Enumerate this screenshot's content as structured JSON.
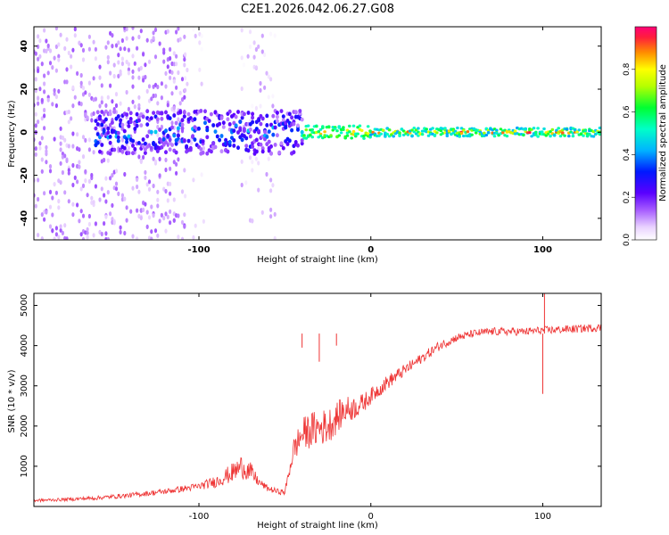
{
  "figure": {
    "title": "C2E1.2026.042.06.27.G08"
  },
  "chart_data": [
    {
      "type": "heatmap",
      "name": "spectrogram",
      "xlabel": "Height of straight line (km)",
      "ylabel": "Frequency (Hz)",
      "xlim": [
        -196,
        134
      ],
      "ylim": [
        -50,
        49
      ],
      "xticks": [
        -100,
        0,
        100
      ],
      "yticks": [
        -40,
        -20,
        0,
        20,
        40
      ],
      "colorbar": {
        "label": "Normalized spectral amplitude",
        "range": [
          0,
          1
        ],
        "ticks": [
          "0.0",
          "0.2",
          "0.4",
          "0.6",
          "0.8"
        ],
        "tick_values": [
          0.0,
          0.2,
          0.4,
          0.6,
          0.8
        ]
      },
      "regions": [
        {
          "x_range": [
            -196,
            -108
          ],
          "freq_spread": 50,
          "amplitude": [
            0.05,
            0.15
          ],
          "density": "high"
        },
        {
          "x_range": [
            -108,
            -95
          ],
          "freq_spread": 50,
          "amplitude": [
            0.0,
            0.08
          ],
          "density": "low"
        },
        {
          "x_range": [
            -95,
            -75
          ],
          "freq_spread": 0,
          "amplitude": [
            0,
            0
          ],
          "density": "none"
        },
        {
          "x_range": [
            -75,
            -55
          ],
          "freq_spread": 50,
          "amplitude": [
            0.0,
            0.1
          ],
          "density": "medium"
        },
        {
          "x_range": [
            -160,
            -40
          ],
          "freq_spread": 10,
          "amplitude": [
            0.1,
            0.5
          ],
          "density": "band"
        },
        {
          "x_range": [
            -40,
            0
          ],
          "freq_spread": 3,
          "amplitude": [
            0.5,
            1.0
          ],
          "density": "line"
        },
        {
          "x_range": [
            0,
            134
          ],
          "freq_spread": 2,
          "amplitude": [
            0.4,
            1.0
          ],
          "density": "line"
        }
      ]
    },
    {
      "type": "line",
      "name": "snr",
      "xlabel": "Height of straight line (km)",
      "ylabel": "SNR (10 * v/v)",
      "xlim": [
        -196,
        134
      ],
      "ylim": [
        0,
        5300
      ],
      "xticks": [
        -100,
        0,
        100
      ],
      "yticks": [
        1000,
        2000,
        3000,
        4000,
        5000
      ],
      "color": "#ee3333",
      "series": [
        {
          "name": "SNR",
          "x": [
            -196,
            -180,
            -160,
            -140,
            -120,
            -100,
            -90,
            -80,
            -75,
            -70,
            -65,
            -60,
            -55,
            -50,
            -45,
            -40,
            -35,
            -30,
            -25,
            -20,
            -15,
            -10,
            -5,
            0,
            10,
            20,
            30,
            40,
            50,
            60,
            70,
            80,
            90,
            100,
            110,
            120,
            134
          ],
          "y": [
            150,
            170,
            210,
            280,
            370,
            500,
            620,
            850,
            1000,
            850,
            600,
            450,
            380,
            350,
            1400,
            1800,
            1900,
            1950,
            2000,
            2200,
            2400,
            2450,
            2550,
            2750,
            3100,
            3400,
            3700,
            4000,
            4200,
            4300,
            4350,
            4350,
            4350,
            4380,
            4400,
            4420,
            4450
          ],
          "noise": [
            40,
            40,
            50,
            60,
            70,
            90,
            150,
            250,
            300,
            250,
            100,
            80,
            70,
            70,
            300,
            400,
            450,
            450,
            450,
            400,
            350,
            300,
            250,
            200,
            180,
            150,
            130,
            120,
            100,
            100,
            100,
            100,
            100,
            100,
            100,
            100,
            100
          ]
        }
      ],
      "spikes": [
        {
          "x": -40,
          "y": 3950
        },
        {
          "x": -30,
          "y": 3600
        },
        {
          "x": -20,
          "y": 4000
        },
        {
          "x": 100,
          "y": 2800
        },
        {
          "x": 101,
          "y": 5300
        }
      ]
    }
  ]
}
